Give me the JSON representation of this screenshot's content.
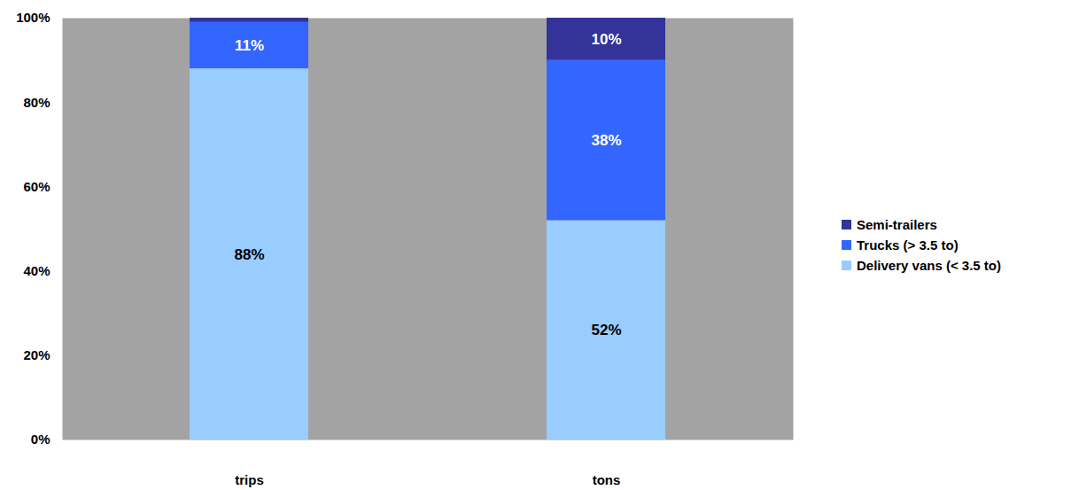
{
  "chart_data": {
    "type": "bar",
    "stacked": true,
    "data_labels": true,
    "categories": [
      "trips",
      "tons"
    ],
    "series": [
      {
        "name": "Delivery vans (< 3.5 to)",
        "color": "#99ccff",
        "values": [
          88,
          52
        ],
        "value_labels": [
          "88%",
          "52%"
        ]
      },
      {
        "name": "Trucks (> 3.5 to)",
        "color": "#3366ff",
        "values": [
          11,
          38
        ],
        "value_labels": [
          "11%",
          "38%"
        ]
      },
      {
        "name": "Semi-trailers",
        "color": "#333399",
        "values": [
          1,
          10
        ],
        "value_labels": [
          null,
          "10%"
        ]
      }
    ],
    "ylim": [
      0,
      100
    ],
    "yticks": [
      {
        "value": 0,
        "label": "0%"
      },
      {
        "value": 20,
        "label": "20%"
      },
      {
        "value": 40,
        "label": "40%"
      },
      {
        "value": 60,
        "label": "60%"
      },
      {
        "value": 80,
        "label": "80%"
      },
      {
        "value": 100,
        "label": "100%"
      }
    ],
    "grid": false,
    "legend": "right"
  }
}
